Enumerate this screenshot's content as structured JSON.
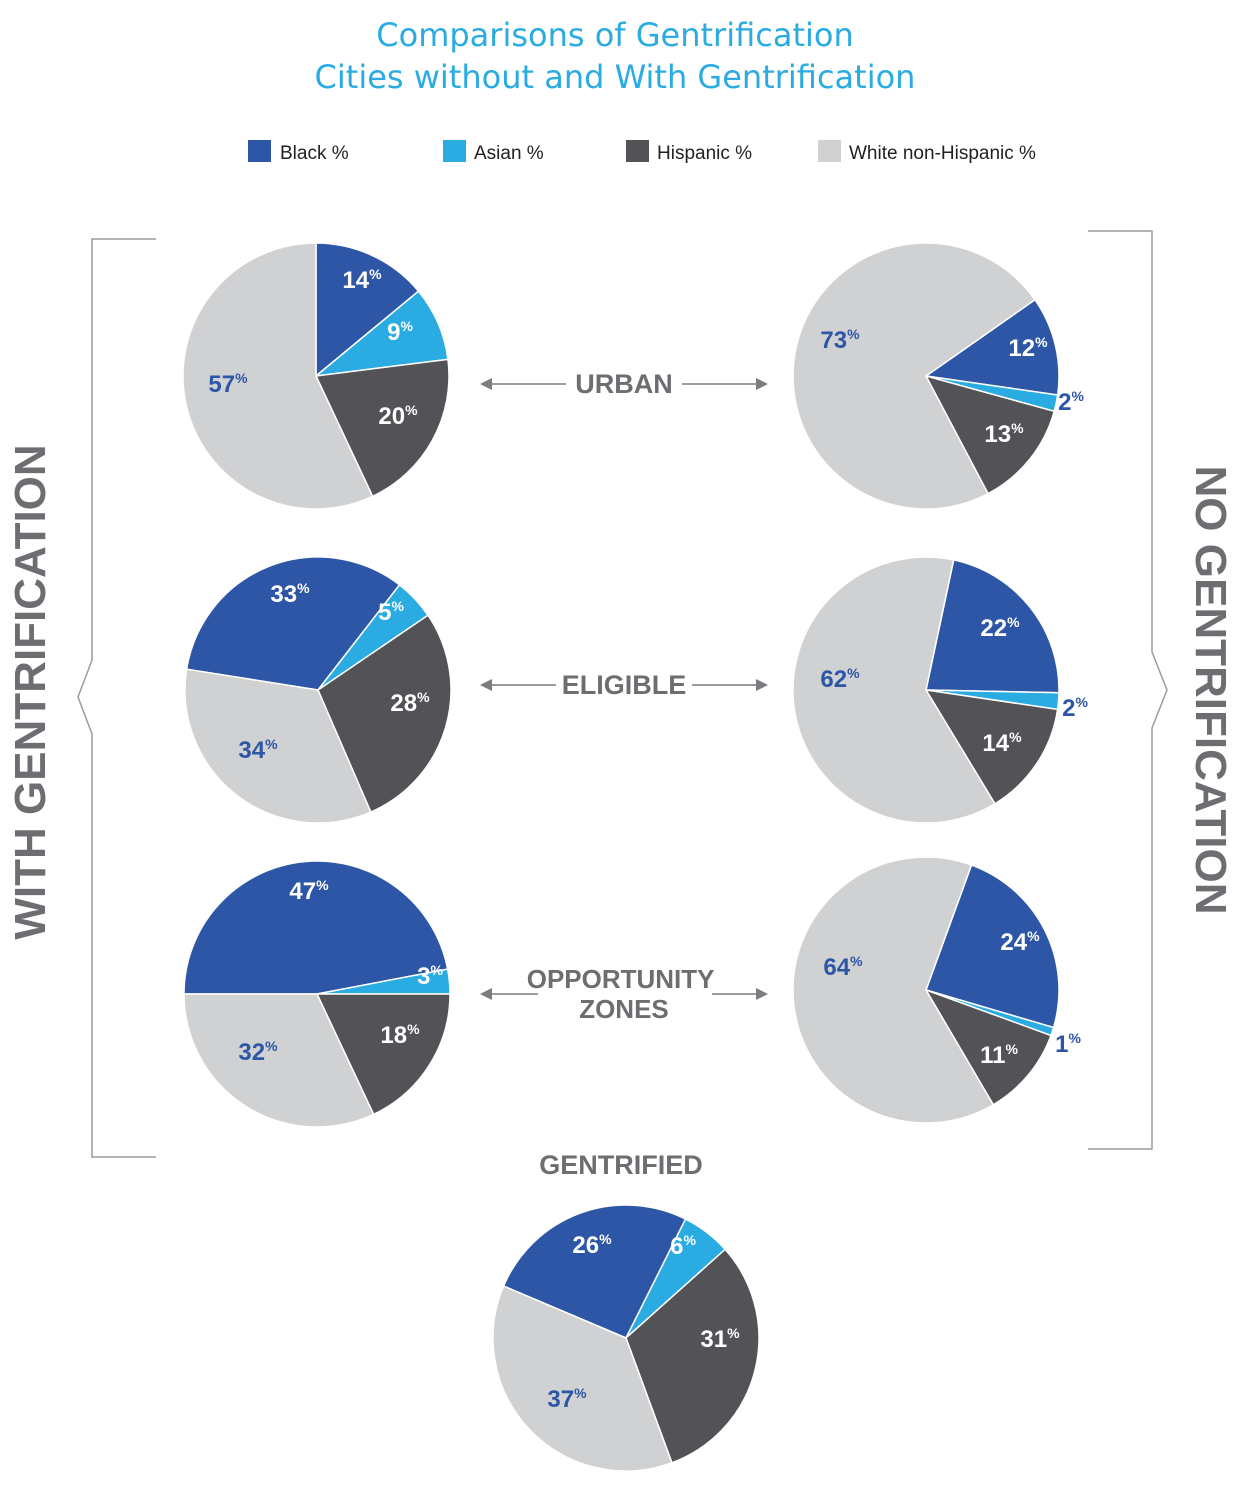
{
  "title": "Comparisons of Gentrification",
  "subtitle": "Cities without and With Gentrification",
  "side_labels": {
    "left": "WITH GENTRIFICATION",
    "right": "NO GENTRIFICATION"
  },
  "row_labels": [
    "URBAN",
    "ELIGIBLE",
    "OPPORTUNITY ZONES"
  ],
  "bottom_label": "GENTRIFIED",
  "percent_suffix": "%",
  "colors": {
    "black": "#2E56A6",
    "asian": "#2AABE2",
    "hispanic": "#535357",
    "white": "#D0D1D3",
    "title": "#2AABE2",
    "label_gray": "#6D6E71",
    "label_blue": "#2E56A6",
    "label_white": "#FFFFFF"
  },
  "chart_data": {
    "type": "pie",
    "legend": {
      "placement": "top",
      "entries": [
        {
          "key": "black",
          "label": "Black %"
        },
        {
          "key": "asian",
          "label": "Asian %"
        },
        {
          "key": "hispanic",
          "label": "Hispanic %"
        },
        {
          "key": "white",
          "label": "White non-Hispanic %"
        }
      ]
    },
    "pies": [
      {
        "id": "urban-with",
        "group": "WITH GENTRIFICATION",
        "category": "URBAN",
        "slices": {
          "black": 14,
          "asian": 9,
          "hispanic": 20,
          "white": 57
        }
      },
      {
        "id": "urban-no",
        "group": "NO GENTRIFICATION",
        "category": "URBAN",
        "slices": {
          "black": 12,
          "asian": 2,
          "hispanic": 13,
          "white": 73
        }
      },
      {
        "id": "eligible-with",
        "group": "WITH GENTRIFICATION",
        "category": "ELIGIBLE",
        "slices": {
          "black": 33,
          "asian": 5,
          "hispanic": 28,
          "white": 34
        }
      },
      {
        "id": "eligible-no",
        "group": "NO GENTRIFICATION",
        "category": "ELIGIBLE",
        "slices": {
          "black": 22,
          "asian": 2,
          "hispanic": 14,
          "white": 62
        }
      },
      {
        "id": "oz-with",
        "group": "WITH GENTRIFICATION",
        "category": "OPPORTUNITY ZONES",
        "slices": {
          "black": 47,
          "asian": 3,
          "hispanic": 18,
          "white": 32
        }
      },
      {
        "id": "oz-no",
        "group": "NO GENTRIFICATION",
        "category": "OPPORTUNITY ZONES",
        "slices": {
          "black": 24,
          "asian": 1,
          "hispanic": 11,
          "white": 64
        }
      },
      {
        "id": "gentrified",
        "group": "",
        "category": "GENTRIFIED",
        "slices": {
          "black": 26,
          "asian": 6,
          "hispanic": 31,
          "white": 37
        }
      }
    ]
  }
}
